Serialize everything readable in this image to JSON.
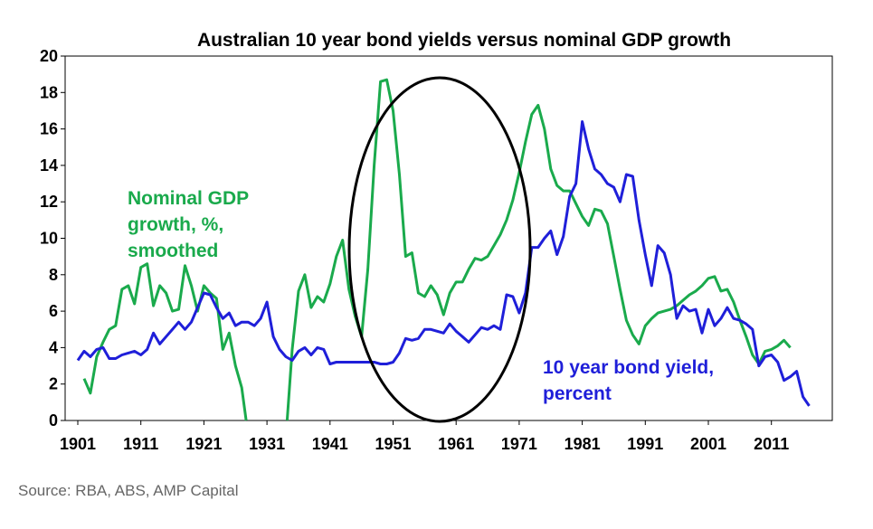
{
  "chart_data": {
    "type": "line",
    "title": "Australian 10 year bond yields versus nominal GDP growth",
    "xlabel": "",
    "ylabel": "",
    "xlim": [
      1901,
      2020
    ],
    "ylim": [
      0,
      20
    ],
    "x_ticks": [
      "1901",
      "1911",
      "1921",
      "1931",
      "1941",
      "1951",
      "1961",
      "1971",
      "1981",
      "1991",
      "2001",
      "2011"
    ],
    "y_ticks": [
      "0",
      "2",
      "4",
      "6",
      "8",
      "10",
      "12",
      "14",
      "16",
      "18",
      "20"
    ],
    "grid": false,
    "series": [
      {
        "name": "Nominal GDP growth, %, smoothed",
        "label_lines": [
          "Nominal GDP",
          "growth, %,",
          "smoothed"
        ],
        "color": "#1aaa4c",
        "points": [
          [
            1902,
            2.3
          ],
          [
            1903,
            1.5
          ],
          [
            1904,
            3.5
          ],
          [
            1905,
            4.3
          ],
          [
            1906,
            5.0
          ],
          [
            1907,
            5.2
          ],
          [
            1908,
            7.2
          ],
          [
            1909,
            7.4
          ],
          [
            1910,
            6.4
          ],
          [
            1911,
            8.4
          ],
          [
            1912,
            8.6
          ],
          [
            1913,
            6.3
          ],
          [
            1914,
            7.4
          ],
          [
            1915,
            7.0
          ],
          [
            1916,
            6.0
          ],
          [
            1917,
            6.1
          ],
          [
            1918,
            8.5
          ],
          [
            1919,
            7.4
          ],
          [
            1920,
            6.0
          ],
          [
            1921,
            7.4
          ],
          [
            1922,
            7.0
          ],
          [
            1923,
            6.7
          ],
          [
            1924,
            3.9
          ],
          [
            1925,
            4.8
          ],
          [
            1926,
            3.0
          ],
          [
            1927,
            1.8
          ],
          [
            1927.7,
            0.0
          ]
        ],
        "points_2": [
          [
            1934.2,
            0.0
          ],
          [
            1935,
            3.9
          ],
          [
            1936,
            7.1
          ],
          [
            1937,
            8.0
          ],
          [
            1938,
            6.2
          ],
          [
            1939,
            6.8
          ],
          [
            1940,
            6.5
          ],
          [
            1941,
            7.5
          ],
          [
            1942,
            9.0
          ],
          [
            1943,
            9.9
          ],
          [
            1944,
            7.2
          ],
          [
            1945,
            5.7
          ],
          [
            1946,
            4.6
          ],
          [
            1947,
            8.3
          ],
          [
            1948,
            14.0
          ],
          [
            1949,
            18.6
          ],
          [
            1950,
            18.7
          ],
          [
            1951,
            17.0
          ],
          [
            1952,
            13.5
          ],
          [
            1953,
            9.0
          ],
          [
            1954,
            9.2
          ],
          [
            1955,
            7.0
          ],
          [
            1956,
            6.8
          ],
          [
            1957,
            7.4
          ],
          [
            1958,
            6.9
          ],
          [
            1959,
            5.8
          ],
          [
            1960,
            7.0
          ],
          [
            1961,
            7.6
          ],
          [
            1962,
            7.6
          ],
          [
            1963,
            8.3
          ],
          [
            1964,
            8.9
          ],
          [
            1965,
            8.8
          ],
          [
            1966,
            9.0
          ],
          [
            1967,
            9.6
          ],
          [
            1968,
            10.2
          ],
          [
            1969,
            11.0
          ],
          [
            1970,
            12.1
          ],
          [
            1971,
            13.6
          ],
          [
            1972,
            15.3
          ],
          [
            1973,
            16.8
          ],
          [
            1974,
            17.3
          ],
          [
            1975,
            16.0
          ],
          [
            1976,
            13.8
          ],
          [
            1977,
            12.9
          ],
          [
            1978,
            12.6
          ],
          [
            1979,
            12.6
          ],
          [
            1980,
            11.9
          ],
          [
            1981,
            11.2
          ],
          [
            1982,
            10.7
          ],
          [
            1983,
            11.6
          ],
          [
            1984,
            11.5
          ],
          [
            1985,
            10.8
          ],
          [
            1986,
            9.0
          ],
          [
            1987,
            7.2
          ],
          [
            1988,
            5.5
          ],
          [
            1989,
            4.7
          ],
          [
            1990,
            4.2
          ],
          [
            1991,
            5.2
          ],
          [
            1992,
            5.6
          ],
          [
            1993,
            5.9
          ],
          [
            1994,
            6.0
          ],
          [
            1995,
            6.1
          ],
          [
            1996,
            6.3
          ],
          [
            1997,
            6.6
          ],
          [
            1998,
            6.9
          ],
          [
            1999,
            7.1
          ],
          [
            2000,
            7.4
          ],
          [
            2001,
            7.8
          ],
          [
            2002,
            7.9
          ],
          [
            2003,
            7.1
          ],
          [
            2004,
            7.2
          ],
          [
            2005,
            6.5
          ],
          [
            2006,
            5.5
          ],
          [
            2007,
            4.6
          ],
          [
            2008,
            3.6
          ],
          [
            2009,
            3.1
          ],
          [
            2010,
            3.8
          ],
          [
            2011,
            3.9
          ],
          [
            2012,
            4.1
          ],
          [
            2013,
            4.4
          ],
          [
            2014,
            4.0
          ]
        ]
      },
      {
        "name": "10 year bond yield, percent",
        "label_lines": [
          "10 year bond yield,",
          "percent"
        ],
        "color": "#1f1fd9",
        "points": [
          [
            1901,
            3.3
          ],
          [
            1902,
            3.8
          ],
          [
            1903,
            3.5
          ],
          [
            1904,
            3.9
          ],
          [
            1905,
            4.0
          ],
          [
            1906,
            3.4
          ],
          [
            1907,
            3.4
          ],
          [
            1908,
            3.6
          ],
          [
            1909,
            3.7
          ],
          [
            1910,
            3.8
          ],
          [
            1911,
            3.6
          ],
          [
            1912,
            3.9
          ],
          [
            1913,
            4.8
          ],
          [
            1914,
            4.2
          ],
          [
            1915,
            4.6
          ],
          [
            1916,
            5.0
          ],
          [
            1917,
            5.4
          ],
          [
            1918,
            5.0
          ],
          [
            1919,
            5.4
          ],
          [
            1920,
            6.2
          ],
          [
            1921,
            7.0
          ],
          [
            1922,
            6.9
          ],
          [
            1923,
            6.2
          ],
          [
            1924,
            5.6
          ],
          [
            1925,
            5.9
          ],
          [
            1926,
            5.2
          ],
          [
            1927,
            5.4
          ],
          [
            1928,
            5.4
          ],
          [
            1929,
            5.2
          ],
          [
            1930,
            5.6
          ],
          [
            1931,
            6.5
          ],
          [
            1932,
            4.6
          ],
          [
            1933,
            3.9
          ],
          [
            1934,
            3.5
          ],
          [
            1935,
            3.3
          ],
          [
            1936,
            3.8
          ],
          [
            1937,
            4.0
          ],
          [
            1938,
            3.6
          ],
          [
            1939,
            4.0
          ],
          [
            1940,
            3.9
          ],
          [
            1941,
            3.1
          ],
          [
            1942,
            3.2
          ],
          [
            1943,
            3.2
          ],
          [
            1944,
            3.2
          ],
          [
            1945,
            3.2
          ],
          [
            1946,
            3.2
          ],
          [
            1947,
            3.2
          ],
          [
            1948,
            3.2
          ],
          [
            1949,
            3.1
          ],
          [
            1950,
            3.1
          ],
          [
            1951,
            3.2
          ],
          [
            1952,
            3.7
          ],
          [
            1953,
            4.5
          ],
          [
            1954,
            4.4
          ],
          [
            1955,
            4.5
          ],
          [
            1956,
            5.0
          ],
          [
            1957,
            5.0
          ],
          [
            1958,
            4.9
          ],
          [
            1959,
            4.8
          ],
          [
            1960,
            5.3
          ],
          [
            1961,
            4.9
          ],
          [
            1962,
            4.6
          ],
          [
            1963,
            4.3
          ],
          [
            1964,
            4.7
          ],
          [
            1965,
            5.1
          ],
          [
            1966,
            5.0
          ],
          [
            1967,
            5.2
          ],
          [
            1968,
            5.0
          ],
          [
            1969,
            6.9
          ],
          [
            1970,
            6.8
          ],
          [
            1971,
            5.9
          ],
          [
            1972,
            7.0
          ],
          [
            1973,
            9.5
          ],
          [
            1974,
            9.5
          ],
          [
            1975,
            10.0
          ],
          [
            1976,
            10.4
          ],
          [
            1977,
            9.1
          ],
          [
            1978,
            10.1
          ],
          [
            1979,
            12.3
          ],
          [
            1980,
            13.0
          ],
          [
            1981,
            16.4
          ],
          [
            1982,
            14.9
          ],
          [
            1983,
            13.8
          ],
          [
            1984,
            13.5
          ],
          [
            1985,
            13.0
          ],
          [
            1986,
            12.8
          ],
          [
            1987,
            12.0
          ],
          [
            1988,
            13.5
          ],
          [
            1989,
            13.4
          ],
          [
            1990,
            11.0
          ],
          [
            1991,
            9.1
          ],
          [
            1992,
            7.4
          ],
          [
            1993,
            9.6
          ],
          [
            1994,
            9.2
          ],
          [
            1995,
            8.0
          ],
          [
            1996,
            5.6
          ],
          [
            1997,
            6.3
          ],
          [
            1998,
            6.0
          ],
          [
            1999,
            6.1
          ],
          [
            2000,
            4.8
          ],
          [
            2001,
            6.1
          ],
          [
            2002,
            5.2
          ],
          [
            2003,
            5.6
          ],
          [
            2004,
            6.2
          ],
          [
            2005,
            5.6
          ],
          [
            2006,
            5.5
          ],
          [
            2007,
            5.3
          ],
          [
            2008,
            5.0
          ],
          [
            2009,
            3.0
          ],
          [
            2010,
            3.5
          ],
          [
            2011,
            3.6
          ],
          [
            2012,
            3.2
          ],
          [
            2013,
            2.2
          ],
          [
            2014,
            2.4
          ],
          [
            2015,
            2.7
          ],
          [
            2016,
            1.3
          ],
          [
            2017,
            0.8
          ]
        ]
      }
    ],
    "annotations": [
      {
        "type": "ellipse",
        "note": "highlights 1946-1971 period"
      }
    ]
  },
  "source": "Source: RBA, ABS, AMP Capital"
}
